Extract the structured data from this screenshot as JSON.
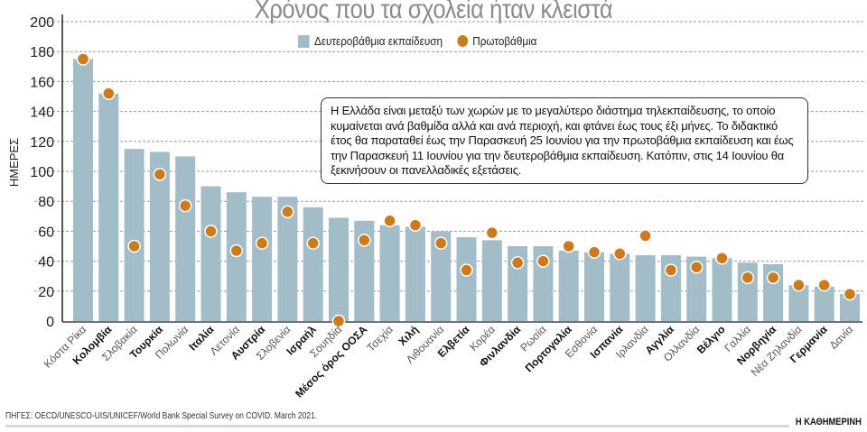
{
  "chart_data": {
    "type": "bar",
    "title": "Χρόνος που τα σχολεία ήταν κλειστά",
    "ylabel": "ΗΜΕΡΕΣ",
    "xlabel": "",
    "ylim": [
      0,
      200
    ],
    "yticks": [
      0,
      20,
      40,
      60,
      80,
      100,
      120,
      140,
      160,
      180,
      200
    ],
    "grid": true,
    "legend_position": "top-center",
    "categories": [
      "Κόστα Ρίκα",
      "Κολομβία",
      "Σλοβακία",
      "Τουρκία",
      "Πολωνία",
      "Ιταλία",
      "Λετονία",
      "Αυστρία",
      "Σλοβενία",
      "Ισραήλ",
      "Σουηδία",
      "Μέσος όρος ΟΟΣΑ",
      "Τσεχία",
      "Χιλή",
      "Λιθουανία",
      "Ελβετία",
      "Κορέα",
      "Φινλανδία",
      "Ρωσία",
      "Πορτογαλία",
      "Εσθονία",
      "Ισπανία",
      "Ιρλανδία",
      "Αγγλία",
      "Ολλανδία",
      "Βέλγιο",
      "Γαλλία",
      "Νορβηγία",
      "Νέα Ζηλανδία",
      "Γερμανία",
      "Δανία"
    ],
    "bold_categories": [
      "Κολομβία",
      "Τουρκία",
      "Ιταλία",
      "Αυστρία",
      "Ισραήλ",
      "Μέσος όρος ΟΟΣΑ",
      "Χιλή",
      "Ελβετία",
      "Φινλανδία",
      "Πορτογαλία",
      "Ισπανία",
      "Αγγλία",
      "Βέλγιο",
      "Νορβηγία",
      "Γερμανία"
    ],
    "series": [
      {
        "name": "Δευτεροβάθμια εκπαίδευση",
        "type": "bar",
        "color": "#a2bcc8",
        "values": [
          175,
          152,
          115,
          113,
          110,
          90,
          86,
          83,
          83,
          76,
          69,
          67,
          64,
          63,
          60,
          56,
          54,
          50,
          50,
          47,
          46,
          45,
          44,
          44,
          43,
          42,
          39,
          38,
          24,
          23,
          18
        ]
      },
      {
        "name": "Πρωτοβάθμια",
        "type": "dot",
        "color": "#cc7a1a",
        "values": [
          175,
          152,
          50,
          98,
          77,
          60,
          47,
          52,
          73,
          52,
          0,
          54,
          67,
          64,
          52,
          34,
          59,
          39,
          40,
          50,
          46,
          45,
          57,
          34,
          36,
          42,
          29,
          29,
          24,
          24,
          18
        ]
      }
    ]
  },
  "annotation": "Η Ελλάδα είναι μεταξύ των χωρών με το μεγαλύτερο διάστημα τηλεκπαίδευσης, το οποίο κυμαίνεται ανά βαθμίδα αλλά και ανά περιοχή, και φτάνει έως τους έξι μήνες. Το διδακτικό έτος θα παραταθεί έως την Παρασκευή 25 Ιουνίου για την πρωτοβάθμια εκπαίδευση και έως την Παρασκευή 11 Ιουνίου για την δευτεροβάθμια εκπαίδευση. Κατόπιν, στις 14 Ιουνίου θα ξεκινήσουν οι πανελλαδικές εξετάσεις.",
  "source": "ΠΗΓΕΣ: OECD/UNESCO-UIS/UNICEF/World Bank Special Survey on COVID. March 2021.",
  "brand": "Η ΚΑΘΗΜΕΡΙΝΗ"
}
